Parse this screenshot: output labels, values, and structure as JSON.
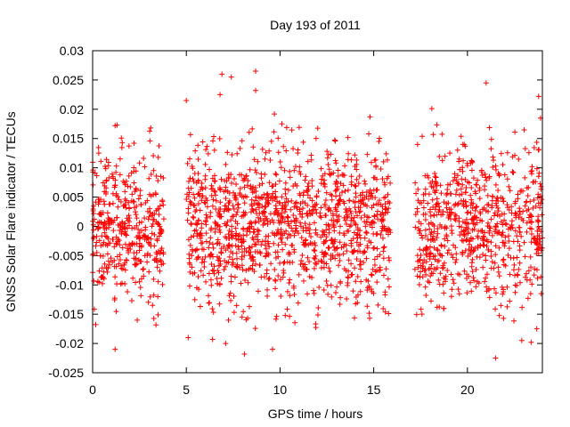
{
  "chart_data": {
    "type": "scatter",
    "title": "Day 193 of 2011",
    "xlabel": "GPS time / hours",
    "ylabel": "GNSS Solar Flare indicator / TECUs",
    "xlim": [
      0,
      24
    ],
    "ylim": [
      -0.025,
      0.03
    ],
    "xticks": [
      "0",
      "5",
      "10",
      "15",
      "20"
    ],
    "xtick_values": [
      0,
      5,
      10,
      15,
      20
    ],
    "yticks": [
      "-0.025",
      "-0.02",
      "-0.015",
      "-0.01",
      "-0.005",
      "0",
      "0.005",
      "0.01",
      "0.015",
      "0.02",
      "0.025",
      "0.03"
    ],
    "ytick_values": [
      -0.025,
      -0.02,
      -0.015,
      -0.01,
      -0.005,
      0,
      0.005,
      0.01,
      0.015,
      0.02,
      0.025,
      0.03
    ],
    "grid": false,
    "marker": "+",
    "color": "#ff0000",
    "series": [
      {
        "segments": [
          {
            "x_start": 0.0,
            "x_end": 3.8,
            "count": 420,
            "mean": 0.0,
            "sd": 0.0065
          },
          {
            "x_start": 5.0,
            "x_end": 15.9,
            "count": 1250,
            "mean": 0.0,
            "sd": 0.0065
          },
          {
            "x_start": 17.2,
            "x_end": 24.0,
            "count": 720,
            "mean": 0.0,
            "sd": 0.0065
          }
        ],
        "outliers": [
          [
            8.7,
            0.0265
          ],
          [
            6.9,
            0.026
          ],
          [
            7.4,
            0.0255
          ],
          [
            5.0,
            0.0215
          ],
          [
            6.8,
            0.0225
          ],
          [
            8.7,
            0.0232
          ],
          [
            21.0,
            0.0245
          ],
          [
            18.1,
            0.0201
          ],
          [
            9.7,
            0.0192
          ],
          [
            14.8,
            0.0187
          ],
          [
            23.8,
            0.0222
          ],
          [
            23.9,
            0.0185
          ],
          [
            1.2,
            0.0172
          ],
          [
            3.1,
            0.0168
          ],
          [
            10.1,
            0.0175
          ],
          [
            1.2,
            -0.021
          ],
          [
            7.1,
            -0.02
          ],
          [
            8.1,
            -0.0218
          ],
          [
            9.6,
            -0.021
          ],
          [
            21.5,
            -0.0225
          ],
          [
            22.9,
            -0.0195
          ],
          [
            23.4,
            -0.0198
          ],
          [
            5.1,
            -0.019
          ],
          [
            6.4,
            -0.0193
          ],
          [
            23.7,
            -0.0175
          ]
        ]
      }
    ]
  }
}
